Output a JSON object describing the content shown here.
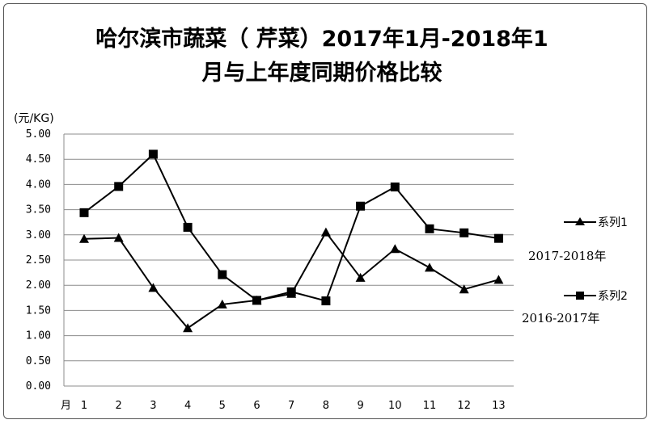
{
  "chart_data": {
    "type": "line",
    "title_lines": [
      "哈尔滨市蔬菜（ 芹菜）2017年1月-2018年1",
      "月与上年度同期价格比较"
    ],
    "ylabel": "(元/KG)",
    "xlabel": "月",
    "ylim": [
      0,
      5
    ],
    "yticks": [
      "0.00",
      "0.50",
      "1.00",
      "1.50",
      "2.00",
      "2.50",
      "3.00",
      "3.50",
      "4.00",
      "4.50",
      "5.00"
    ],
    "categories": [
      "1",
      "2",
      "3",
      "4",
      "5",
      "6",
      "7",
      "8",
      "9",
      "10",
      "11",
      "12",
      "13"
    ],
    "grid": true,
    "legend_position": "right",
    "series": [
      {
        "name": "系列1",
        "period": "2017-2018年",
        "marker": "triangle",
        "color": "#000000",
        "values": [
          2.92,
          2.94,
          1.95,
          1.15,
          1.62,
          1.7,
          1.83,
          3.05,
          2.15,
          2.72,
          2.35,
          1.92,
          2.11
        ]
      },
      {
        "name": "系列2",
        "period": "2016-2017年",
        "marker": "square",
        "color": "#000000",
        "values": [
          3.44,
          3.96,
          4.6,
          3.15,
          2.21,
          1.7,
          1.87,
          1.69,
          3.57,
          3.95,
          3.12,
          3.04,
          2.93
        ]
      }
    ]
  }
}
